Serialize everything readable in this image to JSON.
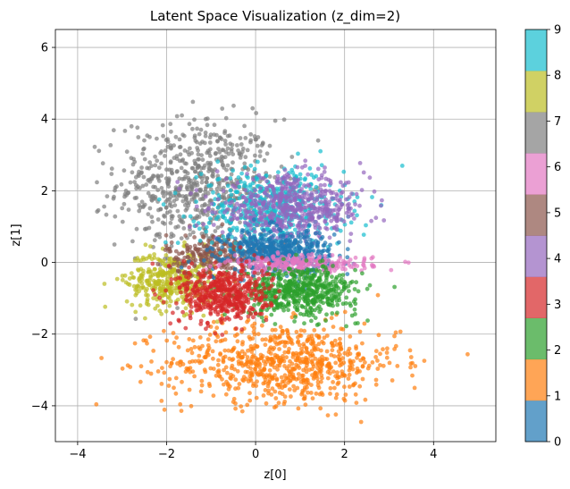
{
  "chart_data": {
    "type": "scatter",
    "title": "Latent Space Visualization (z_dim=2)",
    "xlabel": "z[0]",
    "ylabel": "z[1]",
    "xlim": [
      -4.5,
      5.4
    ],
    "ylim": [
      -5.0,
      6.5
    ],
    "xticks": [
      -4,
      -2,
      0,
      2,
      4
    ],
    "yticks": [
      -4,
      -2,
      0,
      2,
      4,
      6
    ],
    "grid": true,
    "point_alpha": 0.7,
    "colorbar": {
      "ticks": [
        0,
        1,
        2,
        3,
        4,
        5,
        6,
        7,
        8,
        9
      ],
      "colors": [
        "#1f77b4",
        "#ff7f0e",
        "#2ca02c",
        "#d62728",
        "#9467bd",
        "#8c564b",
        "#e377c2",
        "#7f7f7f",
        "#bcbd22",
        "#17becf"
      ]
    },
    "clusters": [
      {
        "class": 7,
        "count": 650,
        "center": [
          -1.3,
          2.2
        ],
        "spread": [
          0.9,
          0.9
        ],
        "color": "#7f7f7f"
      },
      {
        "class": 1,
        "count": 750,
        "center": [
          0.6,
          -2.8
        ],
        "spread": [
          1.3,
          0.55
        ],
        "color": "#ff7f0e"
      },
      {
        "class": 8,
        "count": 380,
        "center": [
          -1.9,
          -0.5
        ],
        "spread": [
          0.5,
          0.4
        ],
        "color": "#bcbd22"
      },
      {
        "class": 5,
        "count": 300,
        "center": [
          -0.8,
          0.2
        ],
        "spread": [
          0.6,
          0.3
        ],
        "color": "#8c564b"
      },
      {
        "class": 9,
        "count": 550,
        "center": [
          0.4,
          1.5
        ],
        "spread": [
          0.8,
          0.55
        ],
        "color": "#17becf"
      },
      {
        "class": 4,
        "count": 550,
        "center": [
          0.8,
          1.5
        ],
        "spread": [
          0.85,
          0.45
        ],
        "color": "#9467bd"
      },
      {
        "class": 0,
        "count": 500,
        "center": [
          0.5,
          0.3
        ],
        "spread": [
          0.6,
          0.3
        ],
        "color": "#1f77b4"
      },
      {
        "class": 6,
        "count": 250,
        "center": [
          1.0,
          -0.05
        ],
        "spread": [
          0.8,
          0.12
        ],
        "color": "#e377c2"
      },
      {
        "class": 2,
        "count": 550,
        "center": [
          1.0,
          -0.8
        ],
        "spread": [
          0.65,
          0.33
        ],
        "color": "#2ca02c"
      },
      {
        "class": 3,
        "count": 500,
        "center": [
          -0.7,
          -0.9
        ],
        "spread": [
          0.5,
          0.4
        ],
        "color": "#d62728"
      }
    ]
  }
}
